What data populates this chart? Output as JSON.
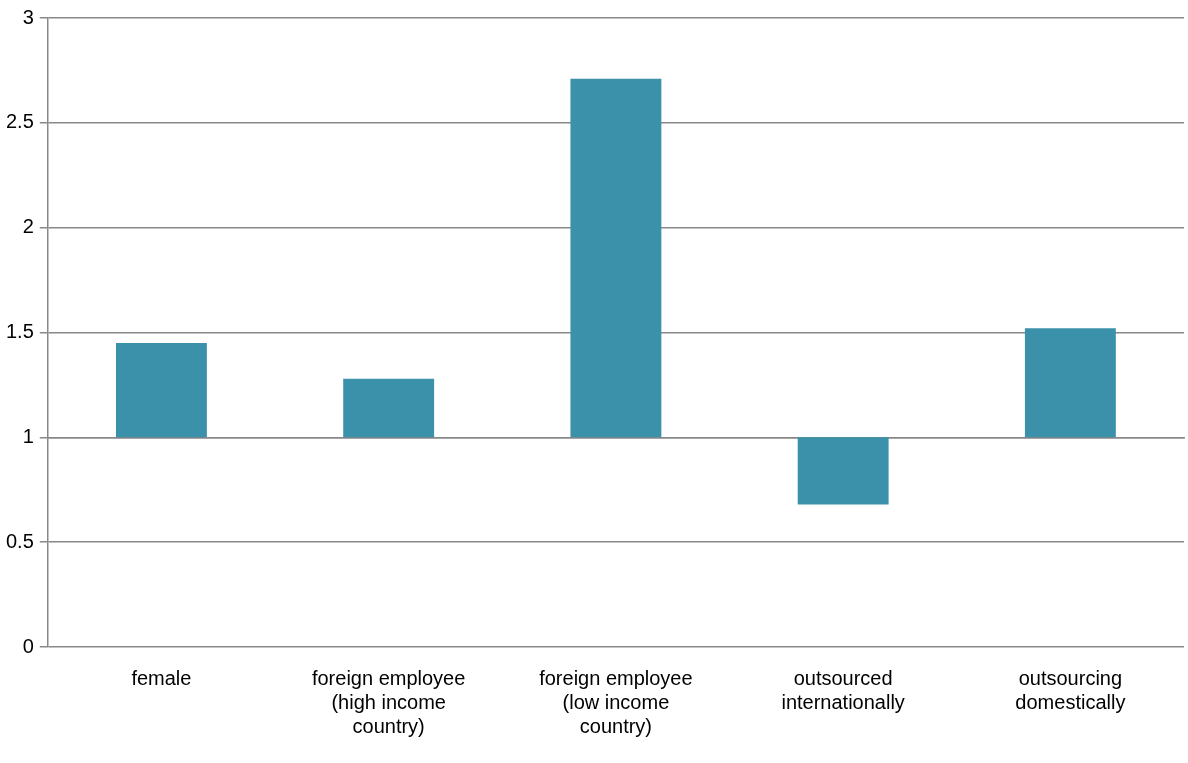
{
  "chart_data": {
    "type": "bar",
    "categories": [
      "female",
      "foreign employee (high income country)",
      "foreign employee (low income country)",
      "outsourced internationally",
      "outsourcing domestically"
    ],
    "base": [
      1,
      1,
      1,
      1,
      1
    ],
    "values": [
      0.45,
      0.28,
      1.71,
      -0.32,
      0.52
    ],
    "color": "#3a91a9",
    "ylim": [
      0,
      3
    ],
    "yticks": [
      0,
      0.5,
      1,
      1.5,
      2,
      2.5,
      3
    ],
    "grid": "y",
    "legend": false
  }
}
